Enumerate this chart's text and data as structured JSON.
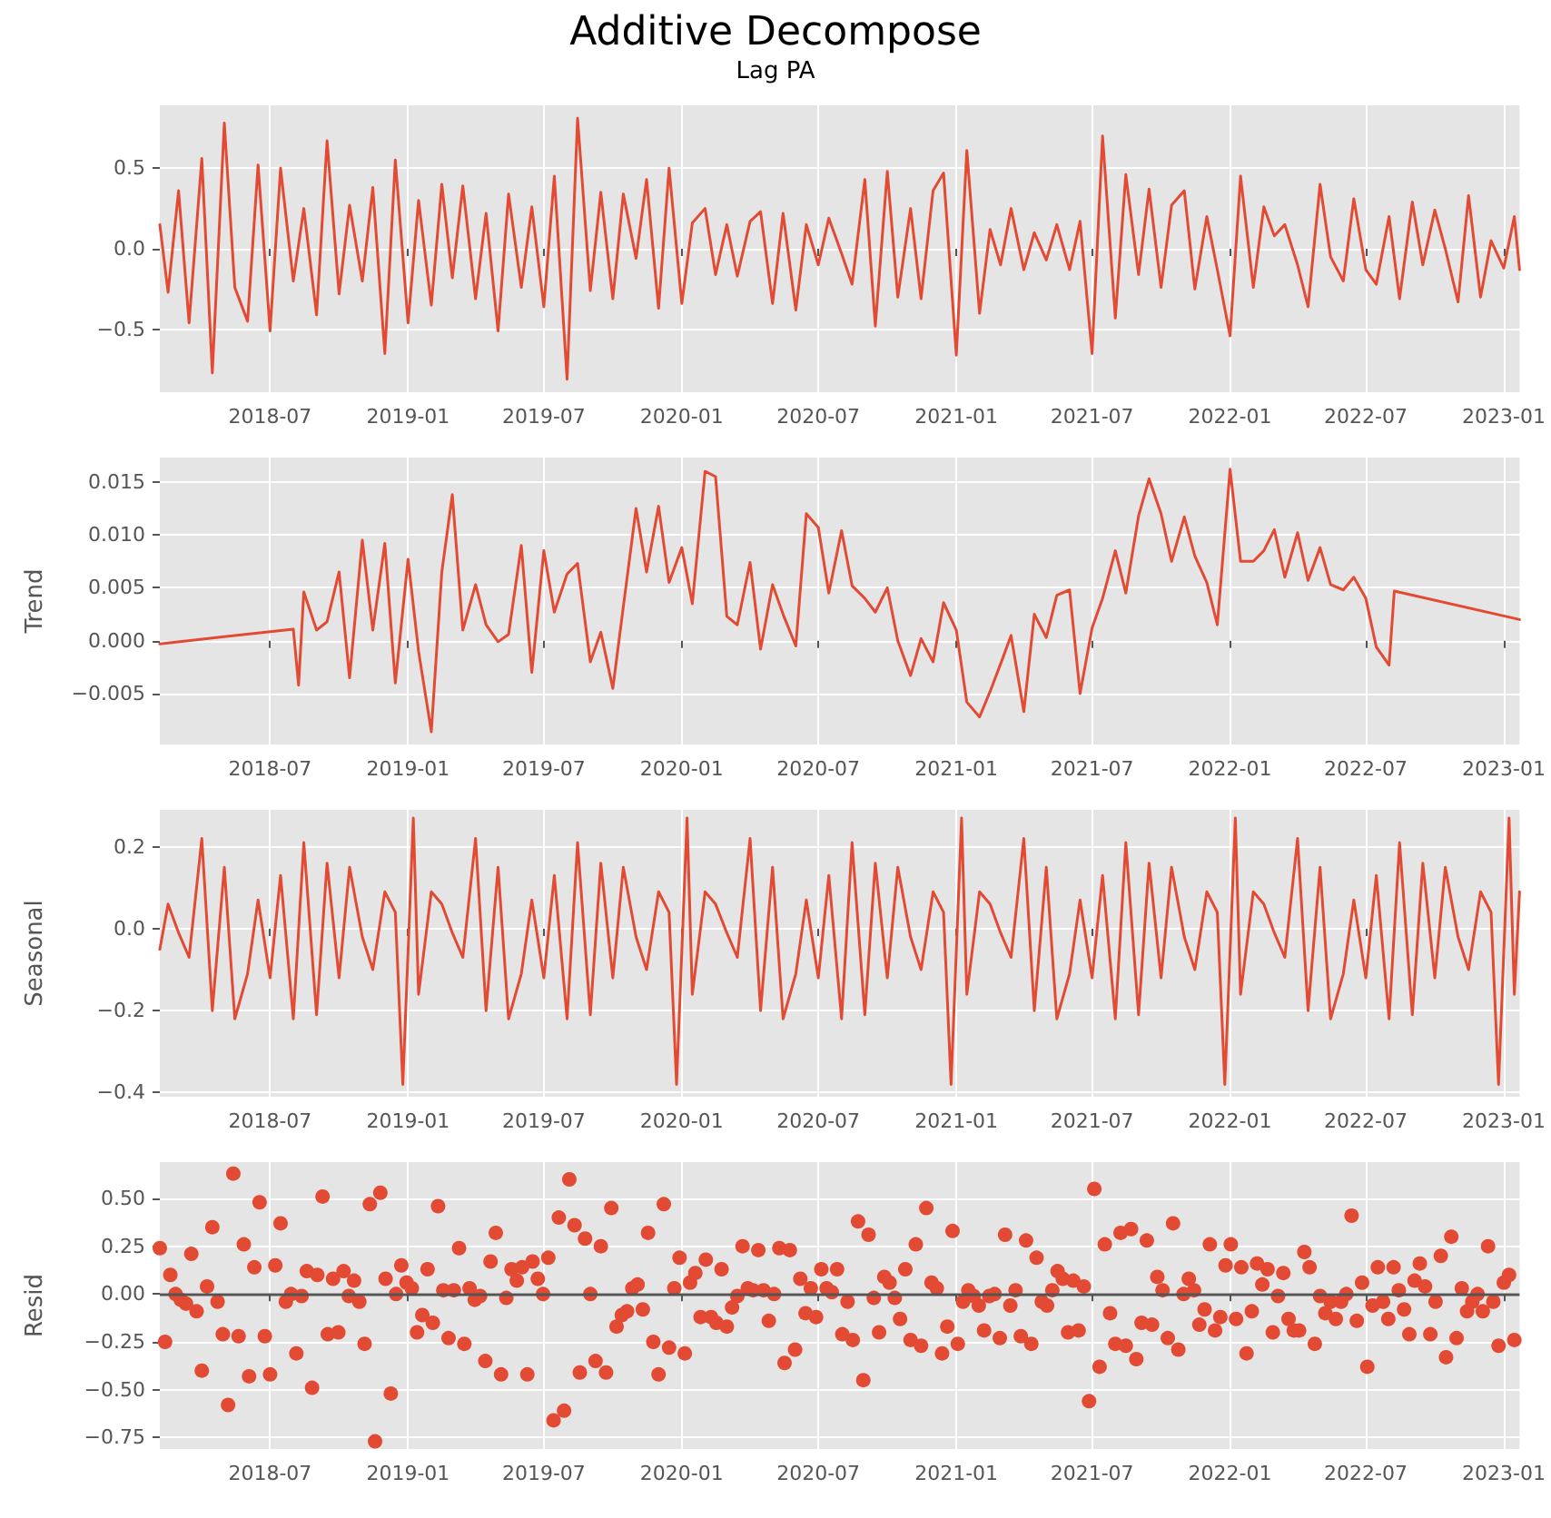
{
  "chart_data": [
    {
      "type": "line",
      "title": "Additive Decompose",
      "subtitle": "Lag PA",
      "grid": true,
      "xlim": [
        "2018-02-04",
        "2023-01-22"
      ],
      "xticks": [
        "2018-07",
        "2019-01",
        "2019-07",
        "2020-01",
        "2020-07",
        "2021-01",
        "2021-07",
        "2022-01",
        "2022-07",
        "2023-01"
      ],
      "ylim": [
        -0.89,
        0.89
      ],
      "yticks": [
        {
          "value": -0.5,
          "label": "−0.5"
        },
        {
          "value": 0,
          "label": "0.0"
        },
        {
          "value": 0.5,
          "label": "0.5"
        }
      ],
      "series": [
        {
          "color": "#e24a33",
          "x": [
            "2018-02-04",
            "2018-02-15",
            "2018-03-01",
            "2018-03-15",
            "2018-04-01",
            "2018-04-15",
            "2018-05-01",
            "2018-05-15",
            "2018-06-01",
            "2018-06-15",
            "2018-07-01",
            "2018-07-15",
            "2018-08-01",
            "2018-08-15",
            "2018-09-01",
            "2018-09-15",
            "2018-10-01",
            "2018-10-15",
            "2018-11-01",
            "2018-11-15",
            "2018-12-01",
            "2018-12-15",
            "2019-01-01",
            "2019-01-15",
            "2019-02-01",
            "2019-02-15",
            "2019-03-01",
            "2019-03-15",
            "2019-04-01",
            "2019-04-15",
            "2019-05-01",
            "2019-05-15",
            "2019-06-01",
            "2019-06-15",
            "2019-07-01",
            "2019-07-15",
            "2019-08-01",
            "2019-08-15",
            "2019-09-01",
            "2019-09-15",
            "2019-10-01",
            "2019-10-15",
            "2019-11-01",
            "2019-11-15",
            "2019-12-01",
            "2019-12-15",
            "2020-01-01",
            "2020-01-15",
            "2020-02-01",
            "2020-02-15",
            "2020-03-01",
            "2020-03-15",
            "2020-04-01",
            "2020-04-15",
            "2020-05-01",
            "2020-05-15",
            "2020-06-01",
            "2020-06-15",
            "2020-07-01",
            "2020-07-15",
            "2020-08-01",
            "2020-08-15",
            "2020-09-01",
            "2020-09-15",
            "2020-10-01",
            "2020-10-15",
            "2020-11-01",
            "2020-11-15",
            "2020-12-01",
            "2020-12-15",
            "2021-01-01",
            "2021-01-15",
            "2021-02-01",
            "2021-02-15",
            "2021-03-01",
            "2021-03-15",
            "2021-04-01",
            "2021-04-15",
            "2021-05-01",
            "2021-05-15",
            "2021-06-01",
            "2021-06-15",
            "2021-07-01",
            "2021-07-15",
            "2021-08-01",
            "2021-08-15",
            "2021-09-01",
            "2021-09-15",
            "2021-10-01",
            "2021-10-15",
            "2021-11-01",
            "2021-11-15",
            "2021-12-01",
            "2021-12-15",
            "2022-01-01",
            "2022-01-15",
            "2022-02-01",
            "2022-02-15",
            "2022-03-01",
            "2022-03-15",
            "2022-04-01",
            "2022-04-15",
            "2022-05-01",
            "2022-05-15",
            "2022-06-01",
            "2022-06-15",
            "2022-07-01",
            "2022-07-15",
            "2022-08-01",
            "2022-08-15",
            "2022-09-01",
            "2022-09-15",
            "2022-10-01",
            "2022-10-15",
            "2022-11-01",
            "2022-11-15",
            "2022-12-01",
            "2022-12-15",
            "2023-01-01",
            "2023-01-15",
            "2023-01-22"
          ],
          "values": [
            0.15,
            -0.27,
            0.36,
            -0.46,
            0.56,
            -0.77,
            0.78,
            -0.24,
            -0.45,
            0.52,
            -0.51,
            0.5,
            -0.2,
            0.25,
            -0.41,
            0.67,
            -0.28,
            0.27,
            -0.2,
            0.38,
            -0.65,
            0.55,
            -0.46,
            0.3,
            -0.35,
            0.4,
            -0.18,
            0.39,
            -0.31,
            0.22,
            -0.51,
            0.34,
            -0.24,
            0.26,
            -0.36,
            0.45,
            -0.81,
            0.81,
            -0.26,
            0.35,
            -0.31,
            0.34,
            -0.06,
            0.43,
            -0.37,
            0.5,
            -0.34,
            0.16,
            0.25,
            -0.16,
            0.15,
            -0.17,
            0.17,
            0.23,
            -0.34,
            0.22,
            -0.38,
            0.15,
            -0.1,
            0.19,
            -0.03,
            -0.22,
            0.43,
            -0.48,
            0.48,
            -0.3,
            0.25,
            -0.31,
            0.36,
            0.47,
            -0.66,
            0.61,
            -0.4,
            0.12,
            -0.1,
            0.25,
            -0.13,
            0.1,
            -0.07,
            0.15,
            -0.13,
            0.17,
            -0.65,
            0.7,
            -0.43,
            0.46,
            -0.16,
            0.37,
            -0.24,
            0.27,
            0.36,
            -0.25,
            0.2,
            -0.13,
            -0.54,
            0.45,
            -0.24,
            0.26,
            0.08,
            0.15,
            -0.1,
            -0.36,
            0.4,
            -0.05,
            -0.2,
            0.31,
            -0.13,
            -0.22,
            0.2,
            -0.31,
            0.29,
            -0.1,
            0.24,
            0.0,
            -0.33,
            0.33,
            -0.3,
            0.05,
            -0.12,
            0.2,
            -0.13
          ]
        }
      ]
    },
    {
      "type": "line",
      "ylabel": "Trend",
      "grid": true,
      "xlim": [
        "2018-02-04",
        "2023-01-22"
      ],
      "xticks": [
        "2018-07",
        "2019-01",
        "2019-07",
        "2020-01",
        "2020-07",
        "2021-01",
        "2021-07",
        "2022-01",
        "2022-07",
        "2023-01"
      ],
      "ylim": [
        -0.0098,
        0.0173
      ],
      "yticks": [
        {
          "value": -0.005,
          "label": "−0.005"
        },
        {
          "value": 0,
          "label": "0.000"
        },
        {
          "value": 0.005,
          "label": "0.005"
        },
        {
          "value": 0.01,
          "label": "0.010"
        },
        {
          "value": 0.015,
          "label": "0.015"
        }
      ],
      "series": [
        {
          "color": "#e24a33",
          "x": [
            "2018-02-04",
            "2018-08-01",
            "2018-08-08",
            "2018-08-15",
            "2018-09-01",
            "2018-09-15",
            "2018-10-01",
            "2018-10-15",
            "2018-11-01",
            "2018-11-15",
            "2018-12-01",
            "2018-12-15",
            "2019-01-01",
            "2019-01-15",
            "2019-02-01",
            "2019-02-15",
            "2019-03-01",
            "2019-03-15",
            "2019-04-01",
            "2019-04-15",
            "2019-05-01",
            "2019-05-15",
            "2019-06-01",
            "2019-06-15",
            "2019-07-01",
            "2019-07-15",
            "2019-08-01",
            "2019-08-15",
            "2019-09-01",
            "2019-09-15",
            "2019-10-01",
            "2019-10-15",
            "2019-11-01",
            "2019-11-15",
            "2019-12-01",
            "2019-12-15",
            "2020-01-01",
            "2020-01-15",
            "2020-02-01",
            "2020-02-15",
            "2020-03-01",
            "2020-03-15",
            "2020-04-01",
            "2020-04-15",
            "2020-05-01",
            "2020-05-15",
            "2020-06-01",
            "2020-06-15",
            "2020-07-01",
            "2020-07-15",
            "2020-08-01",
            "2020-08-15",
            "2020-09-01",
            "2020-09-15",
            "2020-10-01",
            "2020-10-15",
            "2020-11-01",
            "2020-11-15",
            "2020-12-01",
            "2020-12-15",
            "2021-01-01",
            "2021-01-15",
            "2021-02-01",
            "2021-02-15",
            "2021-03-01",
            "2021-03-15",
            "2021-04-01",
            "2021-04-15",
            "2021-05-01",
            "2021-05-15",
            "2021-06-01",
            "2021-06-15",
            "2021-07-01",
            "2021-07-15",
            "2021-08-01",
            "2021-08-15",
            "2021-09-01",
            "2021-09-15",
            "2021-10-01",
            "2021-10-15",
            "2021-11-01",
            "2021-11-15",
            "2021-12-01",
            "2021-12-15",
            "2022-01-01",
            "2022-01-15",
            "2022-02-01",
            "2022-02-15",
            "2022-03-01",
            "2022-03-15",
            "2022-04-01",
            "2022-04-15",
            "2022-05-01",
            "2022-05-15",
            "2022-06-01",
            "2022-06-15",
            "2022-07-01",
            "2022-07-15",
            "2022-08-01",
            "2022-08-08",
            "2023-01-22"
          ],
          "values": [
            -0.0003,
            0.0011,
            -0.0042,
            0.0046,
            0.001,
            0.0018,
            0.0065,
            -0.0035,
            0.0095,
            0.001,
            0.0092,
            -0.004,
            0.0077,
            -0.001,
            -0.0086,
            0.0065,
            0.0138,
            0.001,
            0.0053,
            0.0015,
            -0.0001,
            0.0006,
            0.009,
            -0.003,
            0.0085,
            0.0027,
            0.0063,
            0.0073,
            -0.002,
            0.0008,
            -0.0045,
            0.0032,
            0.0125,
            0.0065,
            0.0127,
            0.0055,
            0.0088,
            0.0035,
            0.016,
            0.0155,
            0.0023,
            0.0015,
            0.0074,
            -0.0008,
            0.0053,
            0.0025,
            -0.0005,
            0.012,
            0.0107,
            0.0045,
            0.0104,
            0.0052,
            0.004,
            0.0027,
            0.005,
            0.0,
            -0.0033,
            0.0002,
            -0.002,
            0.0036,
            0.001,
            -0.0058,
            -0.0072,
            -0.0048,
            -0.0022,
            0.0005,
            -0.0067,
            0.0025,
            0.0003,
            0.0043,
            0.0048,
            -0.005,
            0.0012,
            0.004,
            0.0085,
            0.0045,
            0.0118,
            0.0153,
            0.012,
            0.0075,
            0.0117,
            0.008,
            0.0055,
            0.0015,
            0.0162,
            0.0075,
            0.0075,
            0.0085,
            0.0105,
            0.006,
            0.0102,
            0.0057,
            0.0088,
            0.0053,
            0.0048,
            0.006,
            0.004,
            -0.0006,
            -0.0023,
            0.0047,
            0.002
          ]
        }
      ]
    },
    {
      "type": "line",
      "ylabel": "Seasonal",
      "grid": true,
      "xlim": [
        "2018-02-04",
        "2023-01-22"
      ],
      "xticks": [
        "2018-07",
        "2019-01",
        "2019-07",
        "2020-01",
        "2020-07",
        "2021-01",
        "2021-07",
        "2022-01",
        "2022-07",
        "2023-01"
      ],
      "ylim": [
        -0.41,
        0.29
      ],
      "yticks": [
        {
          "value": -0.4,
          "label": "−0.4"
        },
        {
          "value": -0.2,
          "label": "−0.2"
        },
        {
          "value": 0,
          "label": "0.0"
        },
        {
          "value": 0.2,
          "label": "0.2"
        }
      ],
      "series": [
        {
          "color": "#e24a33",
          "x": [
            "2018-02-04",
            "2018-02-15",
            "2018-03-01",
            "2018-03-15",
            "2018-04-01",
            "2018-04-15",
            "2018-05-01",
            "2018-05-15",
            "2018-06-01",
            "2018-06-15",
            "2018-07-01",
            "2018-07-15",
            "2018-08-01",
            "2018-08-15",
            "2018-09-01",
            "2018-09-15",
            "2018-10-01",
            "2018-10-15",
            "2018-11-01",
            "2018-11-15",
            "2018-12-01",
            "2018-12-15",
            "2018-12-25",
            "2019-01-08",
            "2019-01-15",
            "2019-02-01",
            "2019-02-15",
            "2019-03-01",
            "2019-03-15",
            "2019-04-01",
            "2019-04-15",
            "2019-05-01",
            "2019-05-15",
            "2019-06-01",
            "2019-06-15",
            "2019-07-01",
            "2019-07-15",
            "2019-08-01",
            "2019-08-15",
            "2019-09-01",
            "2019-09-15",
            "2019-10-01",
            "2019-10-15",
            "2019-11-01",
            "2019-11-15",
            "2019-12-01",
            "2019-12-15",
            "2019-12-25",
            "2020-01-08",
            "2020-01-15",
            "2020-02-01",
            "2020-02-15",
            "2020-03-01",
            "2020-03-15",
            "2020-04-01",
            "2020-04-15",
            "2020-05-01",
            "2020-05-15",
            "2020-06-01",
            "2020-06-15",
            "2020-07-01",
            "2020-07-15",
            "2020-08-01",
            "2020-08-15",
            "2020-09-01",
            "2020-09-15",
            "2020-10-01",
            "2020-10-15",
            "2020-11-01",
            "2020-11-15",
            "2020-12-01",
            "2020-12-15",
            "2020-12-25",
            "2021-01-08",
            "2021-01-15",
            "2021-02-01",
            "2021-02-15",
            "2021-03-01",
            "2021-03-15",
            "2021-04-01",
            "2021-04-15",
            "2021-05-01",
            "2021-05-15",
            "2021-06-01",
            "2021-06-15",
            "2021-07-01",
            "2021-07-15",
            "2021-08-01",
            "2021-08-15",
            "2021-09-01",
            "2021-09-15",
            "2021-10-01",
            "2021-10-15",
            "2021-11-01",
            "2021-11-15",
            "2021-12-01",
            "2021-12-15",
            "2021-12-25",
            "2022-01-08",
            "2022-01-15",
            "2022-02-01",
            "2022-02-15",
            "2022-03-01",
            "2022-03-15",
            "2022-04-01",
            "2022-04-15",
            "2022-05-01",
            "2022-05-15",
            "2022-06-01",
            "2022-06-15",
            "2022-07-01",
            "2022-07-15",
            "2022-08-01",
            "2022-08-15",
            "2022-09-01",
            "2022-09-15",
            "2022-10-01",
            "2022-10-15",
            "2022-11-01",
            "2022-11-15",
            "2022-12-01",
            "2022-12-15",
            "2022-12-25",
            "2023-01-08",
            "2023-01-15",
            "2023-01-22"
          ],
          "values": [
            -0.05,
            0.06,
            -0.01,
            -0.07,
            0.22,
            -0.2,
            0.15,
            -0.22,
            -0.11,
            0.07,
            -0.12,
            0.13,
            -0.22,
            0.21,
            -0.21,
            0.16,
            -0.12,
            0.15,
            -0.02,
            -0.1,
            0.09,
            0.04,
            -0.38,
            0.27,
            -0.16,
            0.09,
            0.06,
            -0.01,
            -0.07,
            0.22,
            -0.2,
            0.15,
            -0.22,
            -0.11,
            0.07,
            -0.12,
            0.13,
            -0.22,
            0.21,
            -0.21,
            0.16,
            -0.12,
            0.15,
            -0.02,
            -0.1,
            0.09,
            0.04,
            -0.38,
            0.27,
            -0.16,
            0.09,
            0.06,
            -0.01,
            -0.07,
            0.22,
            -0.2,
            0.15,
            -0.22,
            -0.11,
            0.07,
            -0.12,
            0.13,
            -0.22,
            0.21,
            -0.21,
            0.16,
            -0.12,
            0.15,
            -0.02,
            -0.1,
            0.09,
            0.04,
            -0.38,
            0.27,
            -0.16,
            0.09,
            0.06,
            -0.01,
            -0.07,
            0.22,
            -0.2,
            0.15,
            -0.22,
            -0.11,
            0.07,
            -0.12,
            0.13,
            -0.22,
            0.21,
            -0.21,
            0.16,
            -0.12,
            0.15,
            -0.02,
            -0.1,
            0.09,
            0.04,
            -0.38,
            0.27,
            -0.16,
            0.09,
            0.06,
            -0.01,
            -0.07,
            0.22,
            -0.2,
            0.15,
            -0.22,
            -0.11,
            0.07,
            -0.12,
            0.13,
            -0.22,
            0.21,
            -0.21,
            0.16,
            -0.12,
            0.15,
            -0.02,
            -0.1,
            0.09,
            0.04,
            -0.38,
            0.27,
            -0.16,
            0.09
          ]
        }
      ]
    },
    {
      "type": "scatter",
      "ylabel": "Resid",
      "grid": true,
      "marker": "circle",
      "xlim": [
        "2018-02-04",
        "2023-01-22"
      ],
      "xticks": [
        "2018-07",
        "2019-01",
        "2019-07",
        "2020-01",
        "2020-07",
        "2021-01",
        "2021-07",
        "2022-01",
        "2022-07",
        "2023-01"
      ],
      "ylim": [
        -0.81,
        0.69
      ],
      "yticks": [
        {
          "value": -0.75,
          "label": "−0.75"
        },
        {
          "value": -0.5,
          "label": "−0.50"
        },
        {
          "value": -0.25,
          "label": "−0.25"
        },
        {
          "value": 0,
          "label": "0.00"
        },
        {
          "value": 0.25,
          "label": "0.25"
        },
        {
          "value": 0.5,
          "label": "0.50"
        }
      ],
      "ref_lines": [
        {
          "axis": "y",
          "value": 0,
          "color": "#555555"
        }
      ],
      "series": [
        {
          "color": "#e24a33",
          "x": [
            "2018-02-04",
            "2018-02-11",
            "2018-02-18",
            "2018-02-25",
            "2018-03-04",
            "2018-03-11",
            "2018-03-18",
            "2018-03-25",
            "2018-04-01",
            "2018-04-08",
            "2018-04-15",
            "2018-04-22",
            "2018-04-29",
            "2018-05-06",
            "2018-05-13",
            "2018-05-20",
            "2018-05-27",
            "2018-06-03",
            "2018-06-10",
            "2018-06-17",
            "2018-06-24",
            "2018-07-01",
            "2018-07-08",
            "2018-07-15",
            "2018-07-22",
            "2018-07-29",
            "2018-08-05",
            "2018-08-12",
            "2018-08-19",
            "2018-08-26",
            "2018-09-02",
            "2018-09-09",
            "2018-09-16",
            "2018-09-23",
            "2018-09-30",
            "2018-10-07",
            "2018-10-14",
            "2018-10-21",
            "2018-10-28",
            "2018-11-04",
            "2018-11-11",
            "2018-11-18",
            "2018-11-25",
            "2018-12-02",
            "2018-12-09",
            "2018-12-16",
            "2018-12-23",
            "2018-12-30",
            "2019-01-06",
            "2019-01-13",
            "2019-01-20",
            "2019-01-27",
            "2019-02-03",
            "2019-02-10",
            "2019-02-17",
            "2019-02-24",
            "2019-03-03",
            "2019-03-10",
            "2019-03-17",
            "2019-03-24",
            "2019-03-31",
            "2019-04-07",
            "2019-04-14",
            "2019-04-21",
            "2019-04-28",
            "2019-05-05",
            "2019-05-12",
            "2019-05-19",
            "2019-05-26",
            "2019-06-02",
            "2019-06-09",
            "2019-06-16",
            "2019-06-23",
            "2019-06-30",
            "2019-07-07",
            "2019-07-14",
            "2019-07-21",
            "2019-07-28",
            "2019-08-04",
            "2019-08-11",
            "2019-08-18",
            "2019-08-25",
            "2019-09-01",
            "2019-09-08",
            "2019-09-15",
            "2019-09-22",
            "2019-09-29",
            "2019-10-06",
            "2019-10-13",
            "2019-10-20",
            "2019-10-27",
            "2019-11-03",
            "2019-11-10",
            "2019-11-17",
            "2019-11-24",
            "2019-12-01",
            "2019-12-08",
            "2019-12-15",
            "2019-12-22",
            "2019-12-29",
            "2020-01-05",
            "2020-01-12",
            "2020-01-19",
            "2020-01-26",
            "2020-02-02",
            "2020-02-09",
            "2020-02-16",
            "2020-02-23",
            "2020-03-01",
            "2020-03-08",
            "2020-03-15",
            "2020-03-22",
            "2020-03-29",
            "2020-04-05",
            "2020-04-12",
            "2020-04-19",
            "2020-04-26",
            "2020-05-03",
            "2020-05-10",
            "2020-05-17",
            "2020-05-24",
            "2020-05-31",
            "2020-06-07",
            "2020-06-14",
            "2020-06-21",
            "2020-06-28",
            "2020-07-05",
            "2020-07-12",
            "2020-07-19",
            "2020-07-26",
            "2020-08-02",
            "2020-08-09",
            "2020-08-16",
            "2020-08-23",
            "2020-08-30",
            "2020-09-06",
            "2020-09-13",
            "2020-09-20",
            "2020-09-27",
            "2020-10-04",
            "2020-10-11",
            "2020-10-18",
            "2020-10-25",
            "2020-11-01",
            "2020-11-08",
            "2020-11-15",
            "2020-11-22",
            "2020-11-29",
            "2020-12-06",
            "2020-12-13",
            "2020-12-20",
            "2020-12-27",
            "2021-01-03",
            "2021-01-10",
            "2021-01-17",
            "2021-01-24",
            "2021-01-31",
            "2021-02-07",
            "2021-02-14",
            "2021-02-21",
            "2021-02-28",
            "2021-03-07",
            "2021-03-14",
            "2021-03-21",
            "2021-03-28",
            "2021-04-04",
            "2021-04-11",
            "2021-04-18",
            "2021-04-25",
            "2021-05-02",
            "2021-05-09",
            "2021-05-16",
            "2021-05-23",
            "2021-05-30",
            "2021-06-06",
            "2021-06-13",
            "2021-06-20",
            "2021-06-27",
            "2021-07-04",
            "2021-07-11",
            "2021-07-18",
            "2021-07-25",
            "2021-08-01",
            "2021-08-08",
            "2021-08-15",
            "2021-08-22",
            "2021-08-29",
            "2021-09-05",
            "2021-09-12",
            "2021-09-19",
            "2021-09-26",
            "2021-10-03",
            "2021-10-10",
            "2021-10-17",
            "2021-10-24",
            "2021-10-31",
            "2021-11-07",
            "2021-11-14",
            "2021-11-21",
            "2021-11-28",
            "2021-12-05",
            "2021-12-12",
            "2021-12-19",
            "2021-12-26",
            "2022-01-02",
            "2022-01-09",
            "2022-01-16",
            "2022-01-23",
            "2022-01-30",
            "2022-02-06",
            "2022-02-13",
            "2022-02-20",
            "2022-02-27",
            "2022-03-06",
            "2022-03-13",
            "2022-03-20",
            "2022-03-27",
            "2022-04-03",
            "2022-04-10",
            "2022-04-17",
            "2022-04-24",
            "2022-05-01",
            "2022-05-08",
            "2022-05-15",
            "2022-05-22",
            "2022-05-29",
            "2022-06-05",
            "2022-06-12",
            "2022-06-19",
            "2022-06-26",
            "2022-07-03",
            "2022-07-10",
            "2022-07-17",
            "2022-07-24",
            "2022-07-31",
            "2022-08-07",
            "2022-08-14",
            "2022-08-21",
            "2022-08-28",
            "2022-09-04",
            "2022-09-11",
            "2022-09-18",
            "2022-09-25",
            "2022-10-02",
            "2022-10-09",
            "2022-10-16",
            "2022-10-23",
            "2022-10-30",
            "2022-11-06",
            "2022-11-13",
            "2022-11-20",
            "2022-11-27",
            "2022-12-04",
            "2022-12-11",
            "2022-12-18",
            "2022-12-25",
            "2023-01-01",
            "2023-01-08",
            "2023-01-15"
          ],
          "values": [
            0.24,
            -0.25,
            0.1,
            0.0,
            -0.03,
            -0.05,
            0.21,
            -0.09,
            -0.4,
            0.04,
            0.35,
            -0.04,
            -0.21,
            -0.58,
            0.63,
            -0.22,
            0.26,
            -0.43,
            0.14,
            0.48,
            -0.22,
            -0.42,
            0.15,
            0.37,
            -0.04,
            0.0,
            -0.31,
            -0.01,
            0.12,
            -0.49,
            0.1,
            0.51,
            -0.21,
            0.08,
            -0.2,
            0.12,
            -0.01,
            0.07,
            -0.04,
            -0.26,
            0.47,
            -0.77,
            0.53,
            0.08,
            -0.52,
            0.0,
            0.15,
            0.06,
            0.03,
            -0.2,
            -0.11,
            0.13,
            -0.15,
            0.46,
            0.02,
            -0.23,
            0.02,
            0.24,
            -0.26,
            0.03,
            -0.03,
            -0.01,
            -0.35,
            0.17,
            0.32,
            -0.42,
            -0.02,
            0.13,
            0.07,
            0.14,
            -0.42,
            0.17,
            0.08,
            0.0,
            0.19,
            -0.66,
            0.4,
            -0.61,
            0.6,
            0.36,
            -0.41,
            0.29,
            0.0,
            -0.35,
            0.25,
            -0.41,
            0.45,
            -0.17,
            -0.11,
            -0.09,
            0.03,
            0.05,
            -0.08,
            0.32,
            -0.25,
            -0.42,
            0.47,
            -0.28,
            0.03,
            0.19,
            -0.31,
            0.06,
            0.11,
            -0.12,
            0.18,
            -0.12,
            -0.15,
            0.13,
            -0.17,
            -0.07,
            -0.01,
            0.25,
            0.03,
            0.02,
            0.23,
            0.02,
            -0.14,
            0.0,
            0.24,
            -0.36,
            0.23,
            -0.29,
            0.08,
            -0.1,
            0.03,
            -0.12,
            0.13,
            0.03,
            0.01,
            0.13,
            -0.21,
            -0.04,
            -0.24,
            0.38,
            -0.45,
            0.31,
            -0.02,
            -0.2,
            0.09,
            0.06,
            -0.02,
            -0.13,
            0.13,
            -0.24,
            0.26,
            -0.27,
            0.45,
            0.06,
            0.03,
            -0.31,
            -0.17,
            0.33,
            -0.26,
            -0.04,
            0.02,
            -0.01,
            -0.06,
            -0.19,
            -0.01,
            0.0,
            -0.23,
            0.31,
            -0.06,
            0.02,
            -0.22,
            0.28,
            -0.26,
            0.19,
            -0.04,
            -0.06,
            0.02,
            0.12,
            0.08,
            -0.2,
            0.07,
            -0.19,
            0.04,
            -0.56,
            0.55,
            -0.38,
            0.26,
            -0.1,
            -0.26,
            0.32,
            -0.27,
            0.34,
            -0.34,
            -0.15,
            0.28,
            -0.16,
            0.09,
            0.02,
            -0.23,
            0.37,
            -0.29,
            0.0,
            0.08,
            0.02,
            -0.16,
            -0.08,
            0.26,
            -0.19,
            -0.12,
            0.15,
            0.26,
            -0.13,
            0.14,
            -0.31,
            -0.09,
            0.16,
            0.05,
            0.13,
            -0.2,
            -0.01,
            0.11,
            -0.13,
            -0.19,
            -0.19,
            0.22,
            0.14,
            -0.26,
            -0.01,
            -0.1,
            -0.04,
            -0.13,
            -0.04,
            0.0,
            0.41,
            -0.14,
            0.06,
            -0.38,
            -0.06,
            0.14,
            -0.04,
            -0.13,
            0.14,
            0.02,
            -0.08,
            -0.21,
            0.07,
            0.16,
            0.04,
            -0.21,
            -0.04,
            0.2,
            -0.33,
            0.3,
            -0.23,
            0.03,
            -0.09,
            -0.04,
            0.0,
            -0.09,
            0.25,
            -0.04,
            -0.27,
            0.06,
            0.1,
            -0.24
          ]
        }
      ]
    }
  ]
}
